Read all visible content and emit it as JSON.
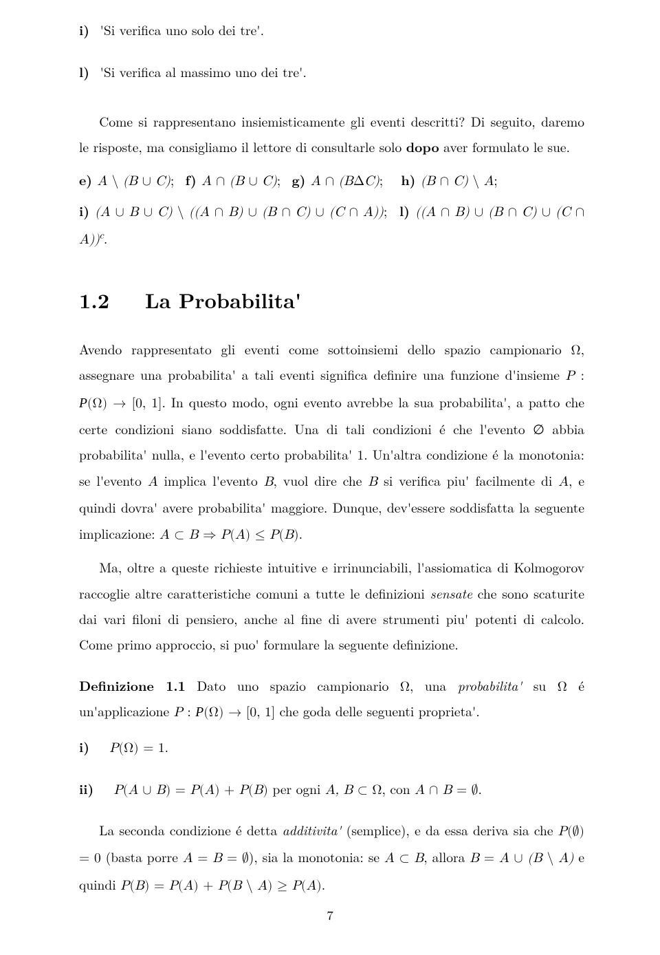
{
  "list_i": {
    "label": "i)",
    "text": "'Si verifica uno solo dei tre'."
  },
  "list_l": {
    "label": "l)",
    "text": "'Si verifica al massimo uno dei tre'."
  },
  "intro_para": "Come si rappresentano insiemisticamente gli eventi descritti? Di seguito, daremo le risposte, ma consigliamo il lettore di consultarle solo ",
  "intro_bold": "dopo",
  "intro_after": " aver formulato le sue.",
  "sol_e_lbl": "e) ",
  "sol_f_lbl": "f) ",
  "sol_g_lbl": "g) ",
  "sol_h_lbl": "h) ",
  "sol_i_lbl": "i) ",
  "sol_l_lbl": "l) ",
  "section_number": "1.2",
  "section_title": "La Probabilita'",
  "body1": "Avendo rappresentato gli eventi come sottoinsiemi dello spazio campionario Ω, assegnare una probabilita' a tali eventi significa definire una funzione d'insieme ",
  "body1b": ". In questo modo, ogni evento avrebbe la sua probabilita', a patto che certe condizioni siano soddisfatte. Una di tali condizioni é che l'evento ∅ abbia probabilita' nulla, e l'evento certo probabilita' 1. Un'altra condizione é la monotonia: se l'evento ",
  "body1c": " implica l'evento ",
  "body1d": ", vuol dire che ",
  "body1e": " si verifica piu' facilmente di ",
  "body1f": ", e quindi dovra' avere probabilita' maggiore. Dunque, dev'essere soddisfatta la seguente implicazione: ",
  "body2a": "Ma, oltre a queste richieste intuitive e irrinunciabili, l'assiomatica di Kolmogorov raccoglie altre caratteristiche comuni a tutte le definizioni ",
  "body2_emph": "sensate",
  "body2b": " che sono scaturite dai vari filoni di pensiero, anche al fine di avere strumenti piu' potenti di calcolo. Come primo approccio, si puo' formulare la seguente definizione.",
  "def_label": "Definizione 1.1",
  "def_text_a": " Dato uno spazio campionario Ω, una ",
  "def_emph": "probabilita'",
  "def_text_b": " su Ω é un'applicazione ",
  "def_text_c": " che goda delle seguenti proprieta'.",
  "prop_i_label": "i)",
  "prop_ii_label": "ii)",
  "prop_ii_tail": " per ogni ",
  "prop_ii_tail2": ", con ",
  "closing_a": "La seconda condizione é detta ",
  "closing_emph": "additivita'",
  "closing_b": " (semplice), e da essa deriva sia che ",
  "closing_c": " (basta porre ",
  "closing_d": "), sia la monotonia: se ",
  "closing_e": ", allora ",
  "closing_f": " e quindi ",
  "page_number": "7"
}
